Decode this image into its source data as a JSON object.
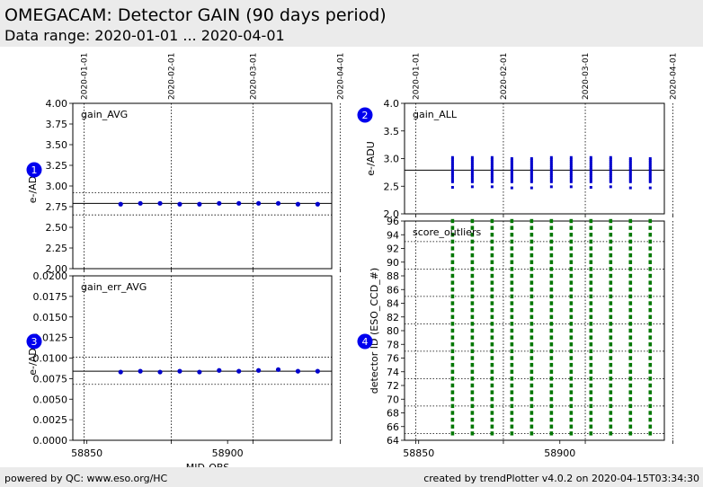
{
  "header": {
    "title": "OMEGACAM: Detector GAIN (90 days period)",
    "subtitle": "Data range: 2020-01-01 ... 2020-04-01"
  },
  "footer": {
    "left": "powered by QC: www.eso.org/HC",
    "right": "created by trendPlotter v4.0.2 on 2020-04-15T03:34:30"
  },
  "colors": {
    "points": "#0000cc",
    "outliers": "#007700",
    "badge": "#0000ee",
    "header_bg": "#ebebeb"
  },
  "chart_data": [
    {
      "id": 1,
      "type": "scatter",
      "label": "gain_AVG",
      "ylabel": "e-/ADU",
      "ylim": [
        2.0,
        4.0
      ],
      "yticks": [
        "2.00",
        "2.25",
        "2.50",
        "2.75",
        "3.00",
        "3.25",
        "3.50",
        "3.75",
        "4.00"
      ],
      "xlim": [
        58845,
        58937
      ],
      "xticks": [],
      "date_lines": [
        "2020-01-01",
        "2020-02-01",
        "2020-03-01",
        "2020-04-01"
      ],
      "reference": 2.79,
      "limits": [
        2.65,
        2.92
      ],
      "x": [
        58862,
        58869,
        58876,
        58883,
        58890,
        58897,
        58904,
        58911,
        58918,
        58925,
        58932
      ],
      "y": [
        2.78,
        2.79,
        2.79,
        2.78,
        2.78,
        2.79,
        2.79,
        2.79,
        2.79,
        2.78,
        2.78
      ]
    },
    {
      "id": 2,
      "type": "scatter",
      "label": "gain_ALL",
      "ylabel": "e-/ADU",
      "ylim": [
        2.0,
        4.0
      ],
      "yticks": [
        "2.0",
        "2.5",
        "3.0",
        "3.5",
        "4.0"
      ],
      "xlim": [
        58845,
        58937
      ],
      "xticks": [],
      "date_lines": [
        "2020-01-01",
        "2020-02-01",
        "2020-03-01",
        "2020-04-01"
      ],
      "reference": 2.79,
      "x": [
        58862,
        58869,
        58876,
        58883,
        58890,
        58897,
        58904,
        58911,
        58918,
        58925,
        58932
      ],
      "range_min": [
        2.58,
        2.58,
        2.58,
        2.58,
        2.58,
        2.58,
        2.58,
        2.58,
        2.58,
        2.58,
        2.58
      ],
      "range_max": [
        3.02,
        3.02,
        3.02,
        3.0,
        3.0,
        3.02,
        3.02,
        3.02,
        3.02,
        3.0,
        3.0
      ],
      "min_outlier": [
        2.48,
        2.49,
        2.49,
        2.47,
        2.47,
        2.49,
        2.49,
        2.48,
        2.49,
        2.47,
        2.47
      ]
    },
    {
      "id": 3,
      "type": "scatter",
      "label": "gain_err_AVG",
      "ylabel": "e-/ADU",
      "ylim": [
        0.0,
        0.02
      ],
      "yticks": [
        "0.0000",
        "0.0025",
        "0.0050",
        "0.0075",
        "0.0100",
        "0.0125",
        "0.0150",
        "0.0175",
        "0.0200"
      ],
      "xlim": [
        58845,
        58937
      ],
      "xticks": [
        "58850",
        "58900"
      ],
      "date_lines": [
        "2020-01-01",
        "2020-02-01",
        "2020-03-01",
        "2020-04-01"
      ],
      "xlabel": "MJD-OBS",
      "reference": 0.0084,
      "limits": [
        0.0068,
        0.0101
      ],
      "x": [
        58862,
        58869,
        58876,
        58883,
        58890,
        58897,
        58904,
        58911,
        58918,
        58925,
        58932
      ],
      "y": [
        0.0083,
        0.0084,
        0.0083,
        0.0084,
        0.0083,
        0.0085,
        0.0084,
        0.0085,
        0.0086,
        0.0084,
        0.0084
      ]
    },
    {
      "id": 4,
      "type": "scatter",
      "label": "score_outliers",
      "ylabel": "detector ID (ESO_CCD_#)",
      "ylim": [
        64,
        96
      ],
      "yticks": [
        "64",
        "66",
        "68",
        "70",
        "72",
        "74",
        "76",
        "78",
        "80",
        "82",
        "84",
        "86",
        "88",
        "90",
        "92",
        "94",
        "96"
      ],
      "xlim": [
        58845,
        58937
      ],
      "xticks": [
        "58850",
        "58900"
      ],
      "date_lines": [
        "2020-01-01",
        "2020-02-01",
        "2020-03-01",
        "2020-04-01"
      ],
      "hlines": [
        65,
        69,
        73,
        77,
        81,
        85,
        89,
        93
      ],
      "x": [
        58862,
        58869,
        58876,
        58883,
        58890,
        58897,
        58904,
        58911,
        58918,
        58925,
        58932
      ],
      "detector_ids": [
        65,
        66,
        67,
        68,
        69,
        70,
        71,
        72,
        73,
        74,
        75,
        76,
        77,
        78,
        79,
        80,
        81,
        82,
        83,
        84,
        85,
        86,
        87,
        88,
        89,
        90,
        91,
        92,
        93,
        94,
        95,
        96
      ]
    }
  ]
}
